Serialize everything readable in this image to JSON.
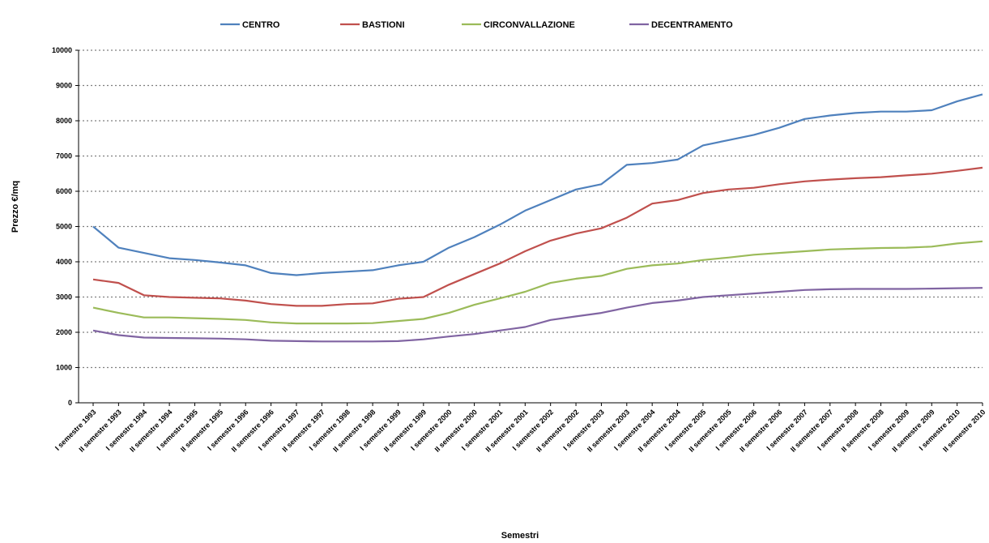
{
  "chart_data": {
    "type": "line",
    "title": "",
    "xlabel": "Semestri",
    "ylabel": "Prezzo €/mq",
    "ylim": [
      0,
      10000
    ],
    "yticks": [
      0,
      1000,
      2000,
      3000,
      4000,
      5000,
      6000,
      7000,
      8000,
      9000,
      10000
    ],
    "grid": true,
    "legend_position": "top",
    "categories": [
      "I semestre 1993",
      "II semestre 1993",
      "I semestre 1994",
      "II semestre 1994",
      "I semestre 1995",
      "II semestre 1995",
      "I semestre 1996",
      "II semestre 1996",
      "I semestre 1997",
      "II semestre 1997",
      "I semestre 1998",
      "II semestre 1998",
      "I semestre 1999",
      "II semestre 1999",
      "I semestre 2000",
      "II semestre 2000",
      "I semestre 2001",
      "II semestre 2001",
      "I semestre 2002",
      "II semestre 2002",
      "I semestre 2003",
      "II semestre 2003",
      "I semestre 2004",
      "II semestre 2004",
      "I semestre 2005",
      "II semestre 2005",
      "I semestre 2006",
      "II semestre 2006",
      "I semestre 2007",
      "II semestre 2007",
      "I semestre 2008",
      "II semestre 2008",
      "I semestre 2009",
      "II semestre 2009",
      "I semestre 2010",
      "II semestre 2010"
    ],
    "series": [
      {
        "name": "CENTRO",
        "color": "#4f81bd",
        "values": [
          5000,
          4400,
          4250,
          4100,
          4050,
          3980,
          3900,
          3680,
          3620,
          3680,
          3720,
          3760,
          3900,
          4000,
          4400,
          4700,
          5050,
          5450,
          5750,
          6050,
          6200,
          6750,
          6800,
          6900,
          7300,
          7450,
          7600,
          7800,
          8050,
          8150,
          8220,
          8260,
          8260,
          8300,
          8550,
          8750
        ]
      },
      {
        "name": "BASTIONI",
        "color": "#c0504d",
        "values": [
          3500,
          3400,
          3050,
          3000,
          2980,
          2960,
          2900,
          2800,
          2750,
          2750,
          2800,
          2820,
          2950,
          3000,
          3350,
          3650,
          3950,
          4300,
          4600,
          4800,
          4950,
          5250,
          5650,
          5750,
          5950,
          6050,
          6100,
          6200,
          6280,
          6330,
          6370,
          6400,
          6450,
          6500,
          6580,
          6670
        ]
      },
      {
        "name": "CIRCONVALLAZIONE",
        "color": "#9bbb59",
        "values": [
          2700,
          2550,
          2420,
          2420,
          2400,
          2380,
          2350,
          2280,
          2250,
          2250,
          2250,
          2260,
          2320,
          2380,
          2550,
          2780,
          2960,
          3150,
          3400,
          3520,
          3600,
          3800,
          3900,
          3950,
          4050,
          4120,
          4200,
          4250,
          4300,
          4350,
          4370,
          4390,
          4400,
          4430,
          4520,
          4580
        ]
      },
      {
        "name": "DECENTRAMENTO",
        "color": "#8064a2",
        "values": [
          2050,
          1920,
          1850,
          1840,
          1830,
          1820,
          1800,
          1760,
          1750,
          1740,
          1740,
          1740,
          1750,
          1800,
          1880,
          1950,
          2050,
          2150,
          2350,
          2450,
          2550,
          2700,
          2830,
          2900,
          3000,
          3050,
          3100,
          3150,
          3200,
          3220,
          3230,
          3230,
          3230,
          3240,
          3250,
          3260
        ]
      }
    ]
  }
}
